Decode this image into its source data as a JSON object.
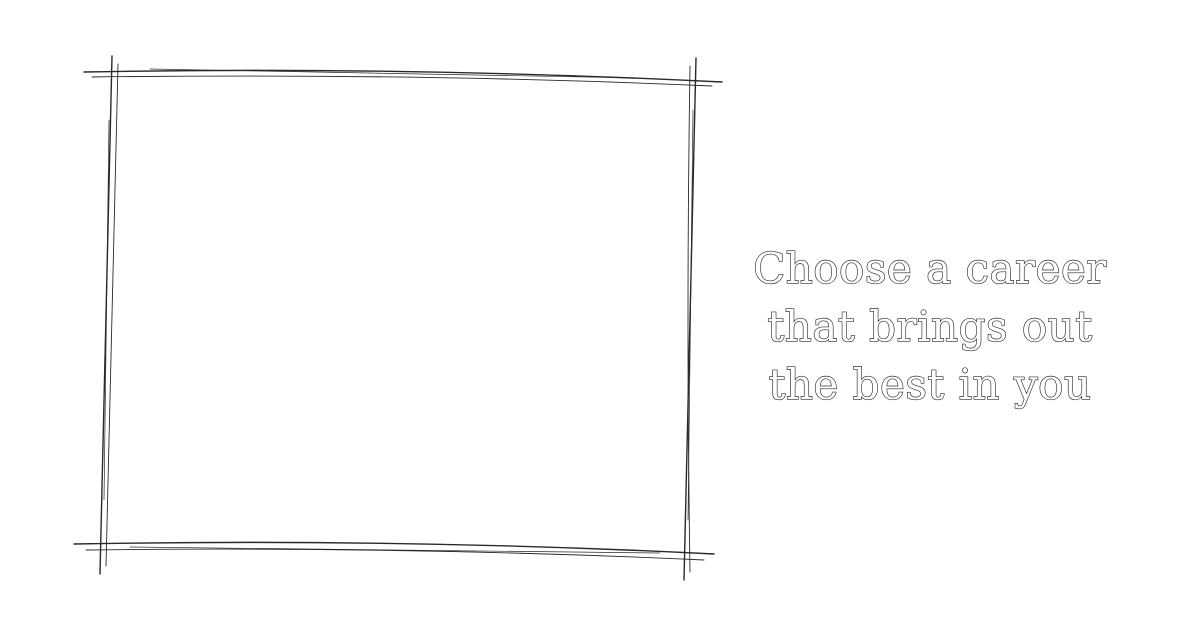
{
  "tagline": {
    "line1": "Choose a career",
    "line2": "that brings out",
    "line3": "the best in you"
  },
  "colors": {
    "background": "#ffffff",
    "outline": "#2a2a2a"
  }
}
